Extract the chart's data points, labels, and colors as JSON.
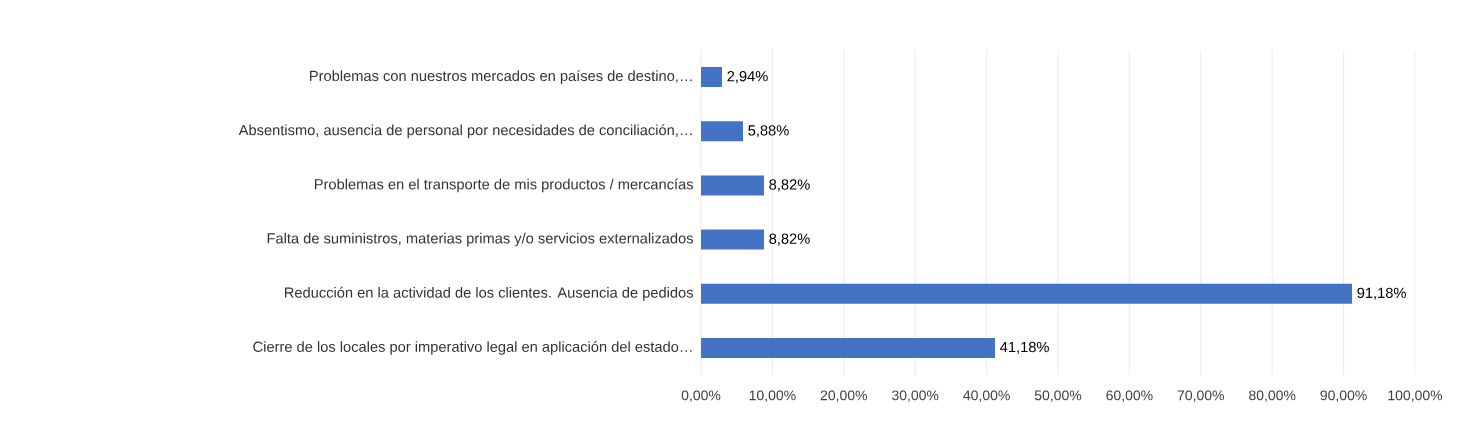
{
  "chart_data": {
    "type": "bar",
    "orientation": "horizontal",
    "categories": [
      "Problemas con nuestros mercados en países de destino,…",
      "Absentismo, ausencia de personal por necesidades de conciliación,…",
      "Problemas en el transporte de mis productos / mercancías",
      "Falta de suministros, materias primas y/o servicios externalizados",
      "Reducción en la actividad de los clientes. Ausencia de pedidos",
      "Cierre de los locales por imperativo legal en aplicación del estado…"
    ],
    "values": [
      2.94,
      5.88,
      8.82,
      8.82,
      91.18,
      41.18
    ],
    "value_labels": [
      "2,94%",
      "5,88%",
      "8,82%",
      "8,82%",
      "91,18%",
      "41,18%"
    ],
    "color": "#4472c4",
    "xlim": [
      0,
      100
    ],
    "xticks": [
      {
        "value": 0,
        "label": "0,00%"
      },
      {
        "value": 10,
        "label": "10,00%"
      },
      {
        "value": 20,
        "label": "20,00%"
      },
      {
        "value": 30,
        "label": "30,00%"
      },
      {
        "value": 40,
        "label": "40,00%"
      },
      {
        "value": 50,
        "label": "50,00%"
      },
      {
        "value": 60,
        "label": "60,00%"
      },
      {
        "value": 70,
        "label": "70,00%"
      },
      {
        "value": 80,
        "label": "80,00%"
      },
      {
        "value": 90,
        "label": "90,00%"
      },
      {
        "value": 100,
        "label": "100,00%"
      }
    ],
    "grid": "x"
  }
}
